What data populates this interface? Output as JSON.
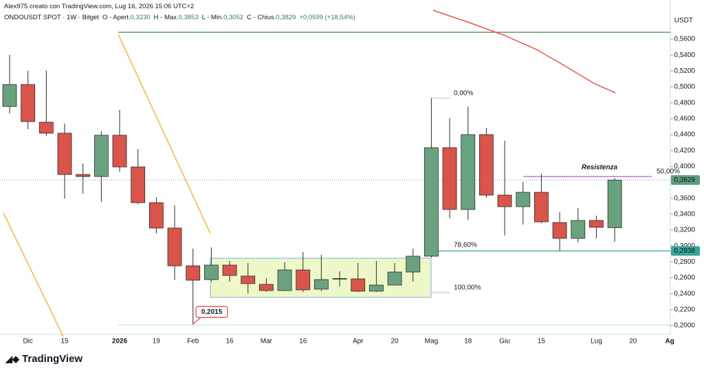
{
  "header": {
    "credit": "Alex975 creato con TradingView.com, Lug 16, 2026 15:06 UTC+2",
    "legend": {
      "symbol": "ONDOUSDT SPOT · 1W · Bitget",
      "open_label": "O - Apert.",
      "open": "0,3230",
      "high_label": "H - Max.",
      "high": "0,3853",
      "low_label": "L - Min.",
      "low": "0,3052",
      "close_label": "C - Chius.",
      "close": "0,3829",
      "change": "+0,0599 (+18,54%)"
    }
  },
  "chart_data": {
    "type": "candlestick",
    "unit": "USDT",
    "categories": [
      null,
      "Dic",
      null,
      "15",
      null,
      null,
      "2026",
      null,
      "19",
      null,
      "Feb",
      null,
      "16",
      null,
      "Mar",
      null,
      "16",
      null,
      null,
      "Apr",
      null,
      "20",
      null,
      "Mag",
      null,
      "18",
      null,
      "Giu",
      null,
      "15",
      null,
      null,
      "Lug",
      null,
      "20",
      null,
      "Ag"
    ],
    "open": [
      0.4754,
      0.503,
      0.4556,
      0.4418,
      0.3899,
      0.3873,
      0.4392,
      0.3994,
      0.3545,
      0.3226,
      0.2751,
      0.2578,
      0.276,
      0.2622,
      0.2518,
      0.244,
      0.2699,
      0.2458,
      0.2587,
      0.2587,
      0.2432,
      0.2509,
      0.2673,
      0.2872,
      0.4236,
      0.3459,
      0.44,
      0.364,
      0.3494,
      0.3675,
      0.3295,
      0.3096,
      0.3321,
      0.323,
      null,
      null,
      null
    ],
    "high": [
      0.5402,
      0.5203,
      0.5203,
      0.4538,
      0.4037,
      0.4443,
      0.4711,
      0.4219,
      0.3614,
      0.3511,
      0.2967,
      0.2984,
      0.2812,
      0.2786,
      0.2596,
      0.2794,
      0.2924,
      0.2889,
      0.2682,
      0.2786,
      0.2812,
      0.2786,
      0.2967,
      0.4858,
      0.4607,
      0.4754,
      0.4486,
      0.4322,
      0.3804,
      0.3908,
      0.3424,
      0.3476,
      0.3381,
      0.3853,
      null,
      null,
      null
    ],
    "low": [
      0.4668,
      0.4469,
      0.4383,
      0.3597,
      0.3658,
      0.3554,
      0.3934,
      0.3528,
      0.3157,
      0.257,
      0.2015,
      0.2553,
      0.2553,
      0.2406,
      0.2423,
      0.2432,
      0.2423,
      0.2432,
      0.2492,
      0.2423,
      0.2423,
      0.2509,
      0.2553,
      0.2855,
      0.3347,
      0.333,
      0.3606,
      0.3131,
      0.3269,
      0.3286,
      0.2941,
      0.3045,
      0.3096,
      0.3052,
      null,
      null,
      null
    ],
    "close": [
      0.503,
      0.4564,
      0.4418,
      0.3899,
      0.3873,
      0.4392,
      0.3994,
      0.3545,
      0.3226,
      0.2751,
      0.257,
      0.276,
      0.263,
      0.2527,
      0.244,
      0.2699,
      0.2449,
      0.2578,
      0.2592,
      0.2432,
      0.2509,
      0.2673,
      0.2872,
      0.4236,
      0.3459,
      0.44,
      0.364,
      0.3494,
      0.3675,
      0.3304,
      0.3096,
      0.3321,
      0.3235,
      0.3829,
      null,
      null,
      null
    ],
    "up_color": "#6aa27f",
    "down_color": "#d9544a",
    "ylim": [
      0.1888,
      0.6092
    ],
    "yticks": [
      {
        "value": 0.2,
        "label": "0,2000"
      },
      {
        "value": 0.22,
        "label": "0,2200"
      },
      {
        "value": 0.24,
        "label": "0,2400"
      },
      {
        "value": 0.26,
        "label": "0,2600"
      },
      {
        "value": 0.28,
        "label": "0,2800"
      },
      {
        "value": 0.3,
        "label": "0,3000"
      },
      {
        "value": 0.32,
        "label": "0,3200"
      },
      {
        "value": 0.34,
        "label": "0,3400"
      },
      {
        "value": 0.36,
        "label": "0,3600"
      },
      {
        "value": 0.38,
        "label": "0,3800"
      },
      {
        "value": 0.4,
        "label": "0,4000"
      },
      {
        "value": 0.42,
        "label": "0,4200"
      },
      {
        "value": 0.44,
        "label": "0,4400"
      },
      {
        "value": 0.46,
        "label": "0,4600"
      },
      {
        "value": 0.48,
        "label": "0,4800"
      },
      {
        "value": 0.5,
        "label": "0,5000"
      },
      {
        "value": 0.52,
        "label": "0,5200"
      },
      {
        "value": 0.54,
        "label": "0,5400"
      },
      {
        "value": 0.56,
        "label": "0,5600"
      }
    ],
    "last_price": {
      "value": 0.3829,
      "label": "0,3829"
    },
    "level": {
      "value": 0.2938,
      "label": "0,2938"
    },
    "low_callout": {
      "value": 0.2015,
      "label": "0,2015"
    },
    "annotations": {
      "resistance": "Resistenza",
      "fib_50": "50,00%",
      "fib_0": "0,00%",
      "fib_786": "78,60%",
      "fib_100": "100,00%"
    }
  },
  "footer": {
    "logo": "TradingView"
  }
}
